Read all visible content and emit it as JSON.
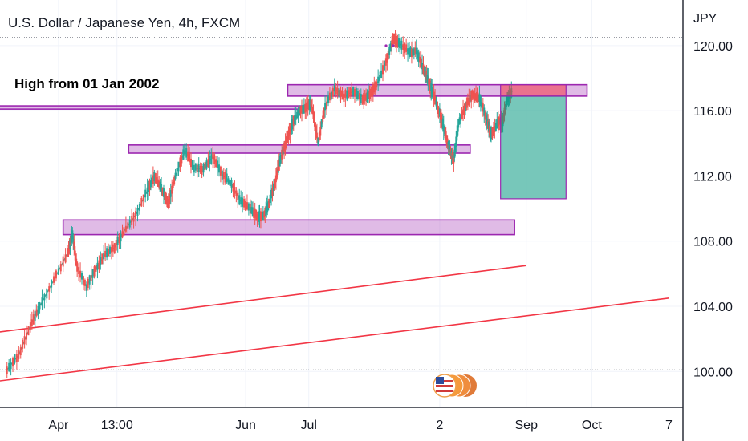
{
  "chart_data": {
    "type": "line",
    "title": "U.S. Dollar / Japanese Yen, 4h, FXCM",
    "y_unit": "JPY",
    "ylim": [
      97.8,
      122.8
    ],
    "y_ticks": [
      "120.00",
      "116.00",
      "112.00",
      "108.00",
      "104.00",
      "100.00"
    ],
    "y_tick_values": [
      120,
      116,
      112,
      108,
      104,
      100
    ],
    "x_ticks": [
      "Apr",
      "13:00",
      "Jun",
      "Jul",
      "2",
      "Sep",
      "Oct",
      "7"
    ],
    "reference_lines": [
      120.5,
      100.1
    ],
    "annotation": "High from 01 Jan 2002",
    "series": [
      {
        "points": [
          [
            0,
            100.1
          ],
          [
            0.05,
            101.0
          ],
          [
            0.1,
            102.8
          ],
          [
            0.14,
            104.0
          ],
          [
            0.2,
            105.6
          ],
          [
            0.26,
            107.3
          ],
          [
            0.28,
            108.4
          ],
          [
            0.3,
            106.4
          ],
          [
            0.34,
            105.2
          ],
          [
            0.38,
            106.3
          ],
          [
            0.42,
            107.2
          ],
          [
            0.46,
            107.6
          ],
          [
            0.5,
            108.6
          ],
          [
            0.55,
            109.6
          ],
          [
            0.6,
            111.1
          ],
          [
            0.63,
            112.0
          ],
          [
            0.66,
            111.2
          ],
          [
            0.69,
            110.3
          ],
          [
            0.72,
            112.0
          ],
          [
            0.76,
            113.6
          ],
          [
            0.8,
            112.5
          ],
          [
            0.84,
            112.4
          ],
          [
            0.88,
            113.2
          ],
          [
            0.92,
            112.1
          ],
          [
            0.96,
            111.5
          ],
          [
            1.0,
            110.4
          ],
          [
            1.04,
            110.0
          ],
          [
            1.07,
            109.5
          ],
          [
            1.1,
            109.6
          ],
          [
            1.12,
            110.3
          ],
          [
            1.15,
            111.8
          ],
          [
            1.17,
            113.1
          ],
          [
            1.2,
            114.3
          ],
          [
            1.22,
            115.2
          ],
          [
            1.25,
            116.0
          ],
          [
            1.28,
            116.2
          ],
          [
            1.3,
            116.5
          ],
          [
            1.33,
            114.1
          ],
          [
            1.36,
            116.2
          ],
          [
            1.4,
            117.4
          ],
          [
            1.44,
            116.9
          ],
          [
            1.48,
            117.2
          ],
          [
            1.52,
            116.7
          ],
          [
            1.55,
            117.0
          ],
          [
            1.58,
            117.6
          ],
          [
            1.62,
            119.0
          ],
          [
            1.65,
            120.4
          ],
          [
            1.68,
            120.1
          ],
          [
            1.72,
            119.6
          ],
          [
            1.75,
            119.7
          ],
          [
            1.78,
            118.6
          ],
          [
            1.8,
            117.9
          ],
          [
            1.82,
            117.1
          ],
          [
            1.85,
            115.8
          ],
          [
            1.87,
            114.8
          ],
          [
            1.89,
            113.7
          ],
          [
            1.91,
            113.0
          ],
          [
            1.93,
            115.2
          ],
          [
            1.96,
            116.3
          ],
          [
            1.99,
            117.0
          ],
          [
            2.02,
            116.8
          ],
          [
            2.05,
            115.5
          ],
          [
            2.07,
            114.5
          ],
          [
            2.1,
            115.3
          ],
          [
            2.12,
            115.4
          ],
          [
            2.14,
            116.8
          ],
          [
            2.16,
            117.2
          ]
        ]
      }
    ],
    "zones": [
      {
        "y_low": 116.1,
        "y_high": 116.3,
        "x_start": -0.2,
        "x_end": 1.28
      },
      {
        "y_low": 113.4,
        "y_high": 113.9,
        "x_start": 0.52,
        "x_end": 1.98
      },
      {
        "y_low": 108.4,
        "y_high": 109.3,
        "x_start": 0.24,
        "x_end": 2.17
      },
      {
        "y_low": 116.9,
        "y_high": 117.6,
        "x_start": 1.2,
        "x_end": 2.48
      }
    ],
    "trend_lines": [
      {
        "from": [
          -0.1,
          102.3
        ],
        "to": [
          2.22,
          106.5
        ]
      },
      {
        "from": [
          -0.1,
          99.3
        ],
        "to": [
          2.83,
          104.5
        ]
      }
    ],
    "position": {
      "entry": 116.9,
      "stop": 117.6,
      "target": 110.6,
      "x_start": 2.11,
      "x_end": 2.39
    },
    "grid": true,
    "legend": "none"
  }
}
